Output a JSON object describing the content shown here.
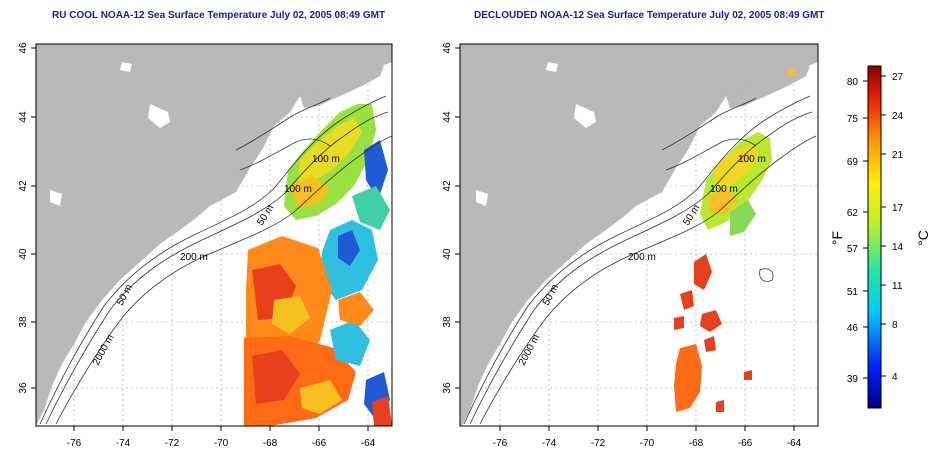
{
  "titles": {
    "left": "RU COOL NOAA-12 Sea Surface Temperature July 02, 2005 08:49 GMT",
    "right": "DECLOUDED NOAA-12 Sea Surface Temperature July 02, 2005 08:49 GMT"
  },
  "axes": {
    "lat_ticks": [
      "36",
      "38",
      "40",
      "42",
      "44",
      "46"
    ],
    "lon_ticks": [
      "-76",
      "-74",
      "-72",
      "-70",
      "-68",
      "-66",
      "-64"
    ]
  },
  "contour_labels": {
    "left": [
      "100 m",
      "100 m",
      "50 m",
      "200 m",
      "50 m",
      "2000 m"
    ],
    "right": [
      "100 m",
      "100 m",
      "50 m",
      "200 m",
      "50 m",
      "2000 m"
    ]
  },
  "colorbar": {
    "fahrenheit_label": "°F",
    "celsius_label": "°C",
    "fahrenheit_ticks": [
      "80",
      "75",
      "69",
      "62",
      "57",
      "51",
      "46",
      "39"
    ],
    "celsius_ticks": [
      "27",
      "24",
      "21",
      "17",
      "14",
      "11",
      "8",
      "4"
    ]
  },
  "colors": {
    "land": "#b9b9b9",
    "title": "#1a1aa8",
    "warm": "#e8401c",
    "cool": "#1e5ad8"
  }
}
